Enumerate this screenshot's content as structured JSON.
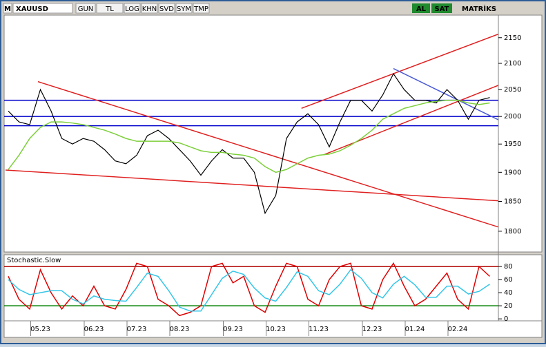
{
  "toolbar": {
    "logo": "M",
    "symbol": "XAUUSD",
    "buttons": [
      "GUN",
      "TL",
      "LOG",
      "KHN",
      "SVD",
      "SYM",
      "TMP"
    ],
    "buy": "AL",
    "sell": "SAT",
    "brand": "MATRİKS"
  },
  "chart_data": [
    {
      "type": "line",
      "log_scale": true,
      "categories": [
        null,
        null,
        null,
        "05.23",
        null,
        null,
        null,
        null,
        "06.23",
        null,
        null,
        null,
        "07.23",
        null,
        null,
        null,
        "08.23",
        null,
        null,
        null,
        null,
        "09.23",
        null,
        null,
        null,
        "10.23",
        null,
        null,
        null,
        "11.23",
        null,
        null,
        null,
        null,
        "12.23",
        null,
        null,
        null,
        "01.24",
        null,
        null,
        null,
        "02.24",
        null,
        null,
        null
      ],
      "series": [
        {
          "color": "#000000",
          "values": [
            2010,
            1990,
            1985,
            2050,
            2010,
            1960,
            1950,
            1960,
            1955,
            1940,
            1920,
            1915,
            1930,
            1965,
            1975,
            1960,
            1940,
            1920,
            1895,
            1920,
            1940,
            1925,
            1925,
            1900,
            1830,
            1860,
            1960,
            1990,
            2005,
            1985,
            1945,
            1990,
            2030,
            2030,
            2010,
            2040,
            2080,
            2050,
            2030,
            2030,
            2025,
            2050,
            2030,
            1995,
            2030,
            2035
          ]
        },
        {
          "color": "#7ccf3a",
          "values": [
            1905,
            1930,
            1960,
            1980,
            1990,
            1990,
            1988,
            1985,
            1980,
            1975,
            1968,
            1960,
            1955,
            1955,
            1955,
            1955,
            1952,
            1945,
            1938,
            1935,
            1935,
            1932,
            1930,
            1925,
            1910,
            1900,
            1905,
            1915,
            1925,
            1930,
            1932,
            1938,
            1948,
            1960,
            1975,
            1995,
            2005,
            2015,
            2020,
            2025,
            2028,
            2030,
            2030,
            2025,
            2022,
            2025
          ]
        }
      ],
      "hlines": [
        {
          "value": 2030,
          "color": "#0000cc"
        },
        {
          "value": 2000,
          "color": "#0000cc"
        },
        {
          "value": 1983,
          "color": "#0000cc"
        }
      ],
      "trendlines": [
        {
          "color": "#e02020",
          "from": [
            2.77,
            2065
          ],
          "to": [
            45.8,
            1807
          ]
        },
        {
          "color": "#e02020",
          "from": [
            -0.26,
            1904
          ],
          "to": [
            45.8,
            1851
          ]
        },
        {
          "color": "#e02020",
          "from": [
            27.4,
            2015
          ],
          "to": [
            45.8,
            2157
          ]
        },
        {
          "color": "#e02020",
          "from": [
            29.5,
            1931
          ],
          "to": [
            45.8,
            2058
          ]
        },
        {
          "color": "#4a5ad8",
          "from": [
            36,
            2090
          ],
          "to": [
            45.8,
            1994
          ]
        }
      ],
      "ylim": [
        1766,
        2195
      ],
      "yticks": [
        1800,
        1850,
        1900,
        1950,
        2000,
        2050,
        2100,
        2150
      ]
    },
    {
      "type": "line",
      "title": "Stochastic.Slow",
      "series": [
        {
          "color": "#e00000",
          "values": [
            65,
            30,
            15,
            75,
            40,
            15,
            35,
            20,
            50,
            20,
            15,
            45,
            85,
            80,
            30,
            20,
            5,
            10,
            20,
            80,
            85,
            55,
            65,
            20,
            10,
            50,
            85,
            80,
            30,
            20,
            60,
            80,
            85,
            20,
            15,
            60,
            85,
            50,
            20,
            30,
            50,
            70,
            30,
            15,
            80,
            65
          ]
        },
        {
          "color": "#33c6e8",
          "values": [
            60,
            45,
            37,
            40,
            43,
            43,
            30,
            23,
            35,
            30,
            28,
            27,
            48,
            70,
            65,
            43,
            18,
            12,
            12,
            37,
            62,
            73,
            68,
            47,
            32,
            27,
            48,
            72,
            65,
            43,
            37,
            53,
            75,
            62,
            40,
            32,
            53,
            65,
            52,
            33,
            33,
            50,
            50,
            38,
            42,
            53
          ]
        }
      ],
      "hlines": [
        {
          "value": 80,
          "color": "#b00000"
        },
        {
          "value": 20,
          "color": "#008000"
        }
      ],
      "ylim": [
        -3,
        98
      ],
      "yticks": [
        0,
        20,
        40,
        60,
        80
      ]
    }
  ]
}
